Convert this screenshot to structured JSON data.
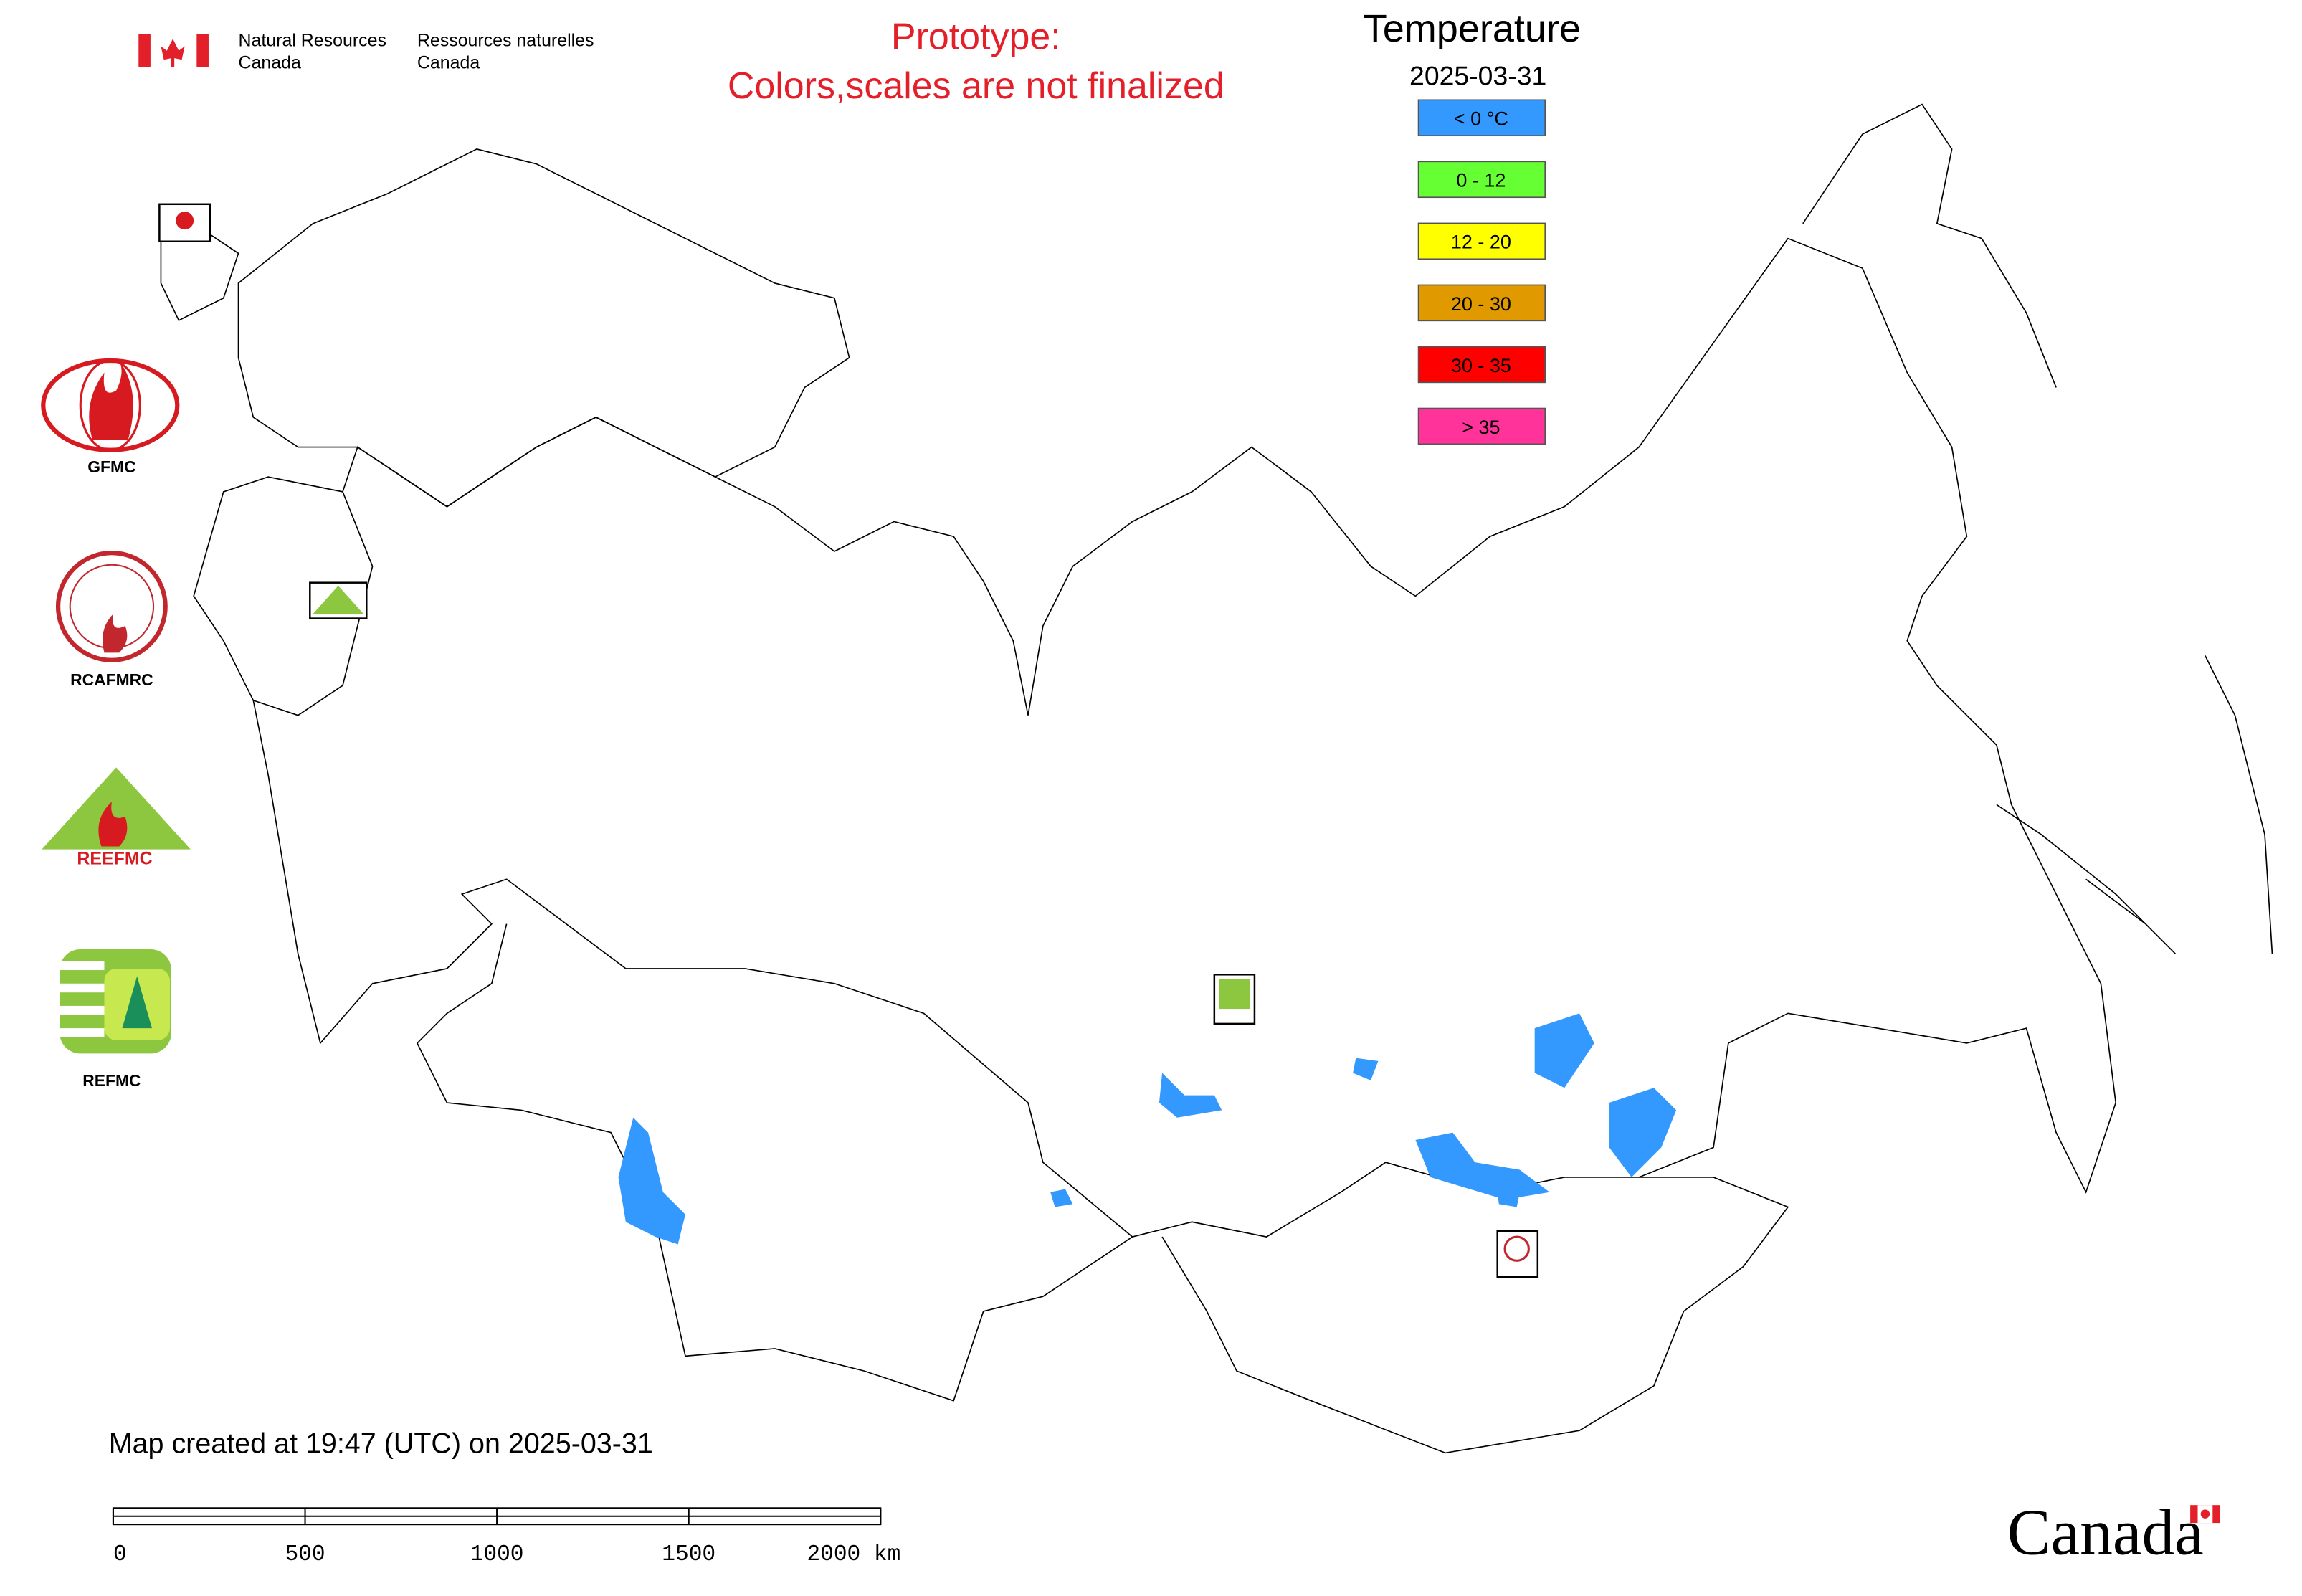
{
  "header": {
    "org_en": [
      "Natural Resources",
      "Canada"
    ],
    "org_fr": [
      "Ressources naturelles",
      "Canada"
    ],
    "note": [
      "Prototype:",
      "Colors,scales are not finalized"
    ]
  },
  "legend": {
    "title": "Temperature",
    "date": "2025-03-31",
    "items": [
      {
        "label": "< 0 °C",
        "color": "#3399ff"
      },
      {
        "label": "0 - 12",
        "color": "#66ff33"
      },
      {
        "label": "12 - 20",
        "color": "#ffff00"
      },
      {
        "label": "20 - 30",
        "color": "#e09a00"
      },
      {
        "label": "30 - 35",
        "color": "#ff0000"
      },
      {
        "label": "> 35",
        "color": "#ff3399"
      }
    ]
  },
  "logos": [
    "GFMC",
    "RCAFMRC",
    "REEFMC",
    "REFMC"
  ],
  "footer": {
    "created": "Map created at 19:47 (UTC) on 2025-03-31",
    "scale_labels": [
      "0",
      "500",
      "1000",
      "1500",
      "2000 km"
    ],
    "wordmark": "Canada"
  }
}
